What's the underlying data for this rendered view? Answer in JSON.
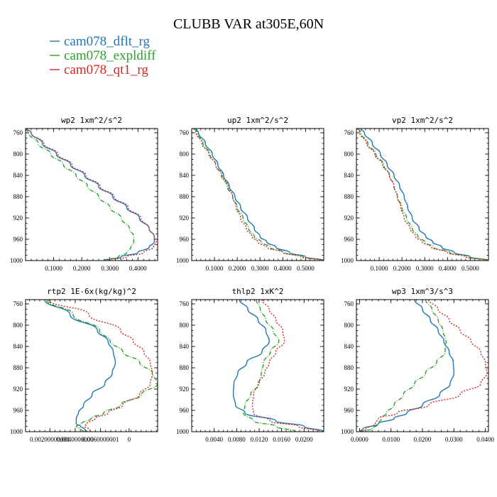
{
  "title": "CLUBB VAR at305E,60N",
  "legend": [
    {
      "name": "cam078_dflt_rg",
      "color": "#1f77b4"
    },
    {
      "name": "cam078_expldiff",
      "color": "#2ca02c"
    },
    {
      "name": "cam078_qt1_rg",
      "color": "#d62728"
    }
  ],
  "chart_data": [
    {
      "type": "line",
      "title": "wp2  1xm^2/s^2",
      "xlim": [
        0,
        0.47
      ],
      "ylim": [
        1000,
        752
      ],
      "x_tick_labels": [
        "0.1000",
        "0.2000",
        "0.3000",
        "0.4000"
      ],
      "x_ticks": [
        0.1,
        0.2,
        0.3,
        0.4
      ],
      "y_ticks": [
        760,
        800,
        840,
        880,
        920,
        960,
        1000
      ],
      "y_tick_labels": [
        "760",
        "800",
        "840",
        "880",
        "920",
        "960",
        "1000"
      ],
      "levels": [
        752,
        760,
        780,
        800,
        820,
        840,
        860,
        880,
        900,
        920,
        940,
        955,
        965,
        975,
        985,
        993,
        1000
      ],
      "series": [
        {
          "name": "cam078_dflt_rg",
          "values": [
            0.005,
            0.02,
            0.06,
            0.11,
            0.16,
            0.21,
            0.26,
            0.31,
            0.36,
            0.405,
            0.44,
            0.458,
            0.458,
            0.44,
            0.4,
            0.34,
            0.28
          ],
          "style": "solid"
        },
        {
          "name": "cam078_expldiff",
          "values": [
            0.0,
            0.01,
            0.045,
            0.09,
            0.135,
            0.18,
            0.22,
            0.26,
            0.3,
            0.34,
            0.37,
            0.385,
            0.385,
            0.375,
            0.36,
            0.33,
            0.28
          ],
          "style": "dashdot"
        },
        {
          "name": "cam078_qt1_rg",
          "values": [
            0.005,
            0.02,
            0.065,
            0.115,
            0.165,
            0.215,
            0.265,
            0.315,
            0.365,
            0.41,
            0.44,
            0.458,
            0.465,
            0.455,
            0.42,
            0.36,
            0.29
          ],
          "style": "dotted"
        }
      ]
    },
    {
      "type": "line",
      "title": "up2  1xm^2/s^2",
      "xlim": [
        0,
        0.58
      ],
      "ylim": [
        1000,
        752
      ],
      "x_tick_labels": [
        "0.1000",
        "0.2000",
        "0.3000",
        "0.4000",
        "0.5000"
      ],
      "x_ticks": [
        0.1,
        0.2,
        0.3,
        0.4,
        0.5
      ],
      "y_ticks": [
        760,
        800,
        840,
        880,
        920,
        960,
        1000
      ],
      "y_tick_labels": [
        "760",
        "800",
        "840",
        "880",
        "920",
        "960",
        "1000"
      ],
      "levels": [
        752,
        760,
        780,
        800,
        820,
        840,
        860,
        880,
        900,
        920,
        940,
        955,
        965,
        975,
        985,
        993,
        1000
      ],
      "series": [
        {
          "name": "cam078_dflt_rg",
          "values": [
            0.02,
            0.03,
            0.06,
            0.09,
            0.115,
            0.14,
            0.165,
            0.19,
            0.215,
            0.245,
            0.275,
            0.3,
            0.33,
            0.37,
            0.43,
            0.5,
            0.58
          ],
          "style": "solid"
        },
        {
          "name": "cam078_expldiff",
          "values": [
            0.015,
            0.025,
            0.05,
            0.08,
            0.105,
            0.13,
            0.155,
            0.18,
            0.2,
            0.225,
            0.25,
            0.275,
            0.305,
            0.345,
            0.41,
            0.49,
            0.58
          ],
          "style": "dashdot"
        },
        {
          "name": "cam078_qt1_rg",
          "values": [
            0.01,
            0.02,
            0.045,
            0.075,
            0.105,
            0.135,
            0.16,
            0.18,
            0.195,
            0.215,
            0.24,
            0.265,
            0.29,
            0.33,
            0.4,
            0.48,
            0.58
          ],
          "style": "dotted"
        }
      ]
    },
    {
      "type": "line",
      "title": "vp2  1xm^2/s^2",
      "xlim": [
        0,
        0.58
      ],
      "ylim": [
        1000,
        752
      ],
      "x_tick_labels": [
        "0.1000",
        "0.2000",
        "0.3000",
        "0.4000",
        "0.5000"
      ],
      "x_ticks": [
        0.1,
        0.2,
        0.3,
        0.4,
        0.5
      ],
      "y_ticks": [
        760,
        800,
        840,
        880,
        920,
        960,
        1000
      ],
      "y_tick_labels": [
        "760",
        "800",
        "840",
        "880",
        "920",
        "960",
        "1000"
      ],
      "levels": [
        752,
        760,
        780,
        800,
        820,
        840,
        860,
        880,
        900,
        920,
        940,
        955,
        965,
        975,
        985,
        993,
        1000
      ],
      "series": [
        {
          "name": "cam078_dflt_rg",
          "values": [
            0.02,
            0.035,
            0.07,
            0.105,
            0.135,
            0.165,
            0.19,
            0.21,
            0.225,
            0.245,
            0.275,
            0.305,
            0.335,
            0.375,
            0.43,
            0.5,
            0.58
          ],
          "style": "solid"
        },
        {
          "name": "cam078_expldiff",
          "values": [
            0.01,
            0.02,
            0.05,
            0.085,
            0.12,
            0.145,
            0.165,
            0.18,
            0.2,
            0.22,
            0.245,
            0.27,
            0.3,
            0.34,
            0.41,
            0.49,
            0.58
          ],
          "style": "dashdot"
        },
        {
          "name": "cam078_qt1_rg",
          "values": [
            0.005,
            0.015,
            0.045,
            0.08,
            0.115,
            0.145,
            0.165,
            0.18,
            0.195,
            0.21,
            0.235,
            0.26,
            0.29,
            0.33,
            0.4,
            0.48,
            0.58
          ],
          "style": "dotted"
        }
      ]
    },
    {
      "type": "line",
      "title": "rtp2  1E-6x(kg/kg)^2",
      "xlim": [
        0,
        0.0125
      ],
      "ylim": [
        1000,
        752
      ],
      "x_tick_labels": [
        "0.00200000001",
        "0.0040000000",
        "0.0060000001",
        "0"
      ],
      "x_ticks": [
        0.0023,
        0.0047,
        0.0071,
        0.0098
      ],
      "y_ticks": [
        760,
        800,
        840,
        880,
        920,
        960,
        1000
      ],
      "y_tick_labels": [
        "760",
        "800",
        "840",
        "880",
        "920",
        "960",
        "1000"
      ],
      "levels": [
        752,
        780,
        810,
        830,
        850,
        870,
        890,
        910,
        930,
        950,
        965,
        975,
        985,
        990,
        995,
        1000
      ],
      "series": [
        {
          "name": "cam078_dflt_rg",
          "values": [
            0.0018,
            0.0042,
            0.0068,
            0.0078,
            0.0083,
            0.0085,
            0.0082,
            0.0075,
            0.0063,
            0.0055,
            0.005,
            0.0048,
            0.0048,
            0.0052,
            0.0056,
            0.0058
          ],
          "style": "solid"
        },
        {
          "name": "cam078_expldiff",
          "values": [
            0.002,
            0.0045,
            0.007,
            0.008,
            0.0092,
            0.0108,
            0.012,
            0.0125,
            0.011,
            0.009,
            0.0074,
            0.0062,
            0.0053,
            0.0048,
            0.0052,
            0.0055
          ],
          "style": "dashdot"
        },
        {
          "name": "cam078_qt1_rg",
          "values": [
            0.0022,
            0.006,
            0.009,
            0.0102,
            0.0112,
            0.0118,
            0.012,
            0.0118,
            0.0108,
            0.0092,
            0.0078,
            0.0066,
            0.0058,
            0.0056,
            0.006,
            0.0062
          ],
          "style": "dotted"
        }
      ]
    },
    {
      "type": "line",
      "title": "thlp2  1xK^2",
      "xlim": [
        0,
        0.0235
      ],
      "ylim": [
        1000,
        752
      ],
      "x_tick_labels": [
        "0.0040",
        "0.0080",
        "0.0120",
        "0.0160",
        "0.0200"
      ],
      "x_ticks": [
        0.004,
        0.008,
        0.012,
        0.016,
        0.02
      ],
      "y_ticks": [
        760,
        800,
        840,
        880,
        920,
        960,
        1000
      ],
      "y_tick_labels": [
        "760",
        "800",
        "840",
        "880",
        "920",
        "960",
        "1000"
      ],
      "levels": [
        752,
        770,
        790,
        810,
        830,
        850,
        870,
        890,
        910,
        930,
        950,
        965,
        980,
        990,
        1000
      ],
      "series": [
        {
          "name": "cam078_dflt_rg",
          "values": [
            0.0085,
            0.01,
            0.0118,
            0.0132,
            0.0138,
            0.0125,
            0.0098,
            0.0082,
            0.0075,
            0.0074,
            0.0078,
            0.0095,
            0.015,
            0.02,
            0.0235
          ],
          "style": "solid"
        },
        {
          "name": "cam078_expldiff",
          "values": [
            0.0115,
            0.0122,
            0.0132,
            0.0145,
            0.0155,
            0.014,
            0.0128,
            0.0124,
            0.012,
            0.0105,
            0.0095,
            0.0092,
            0.011,
            0.015,
            0.0185
          ],
          "style": "dashdot"
        },
        {
          "name": "cam078_qt1_rg",
          "values": [
            0.0125,
            0.0138,
            0.015,
            0.0162,
            0.0165,
            0.015,
            0.0138,
            0.013,
            0.0118,
            0.011,
            0.0108,
            0.011,
            0.014,
            0.019,
            0.023
          ],
          "style": "dotted"
        }
      ]
    },
    {
      "type": "line",
      "title": "wp3  1xm^3/s^3",
      "xlim": [
        -0.001,
        0.041
      ],
      "ylim": [
        1000,
        752
      ],
      "x_tick_labels": [
        "0.0000",
        "0.0100",
        "0.0200",
        "0.0300",
        "0.0400"
      ],
      "x_ticks": [
        0.0,
        0.01,
        0.02,
        0.03,
        0.04
      ],
      "y_ticks": [
        760,
        800,
        840,
        880,
        920,
        960,
        1000
      ],
      "y_tick_labels": [
        "760",
        "800",
        "840",
        "880",
        "920",
        "960",
        "1000"
      ],
      "levels": [
        752,
        770,
        790,
        810,
        830,
        850,
        870,
        890,
        910,
        930,
        950,
        965,
        975,
        985,
        995,
        1000
      ],
      "series": [
        {
          "name": "cam078_dflt_rg",
          "values": [
            0.0175,
            0.02,
            0.0225,
            0.025,
            0.0268,
            0.0285,
            0.0298,
            0.03,
            0.0288,
            0.0255,
            0.02,
            0.015,
            0.011,
            0.006,
            0.001,
            0.0
          ],
          "style": "solid"
        },
        {
          "name": "cam078_expldiff",
          "values": [
            0.021,
            0.023,
            0.025,
            0.0265,
            0.0275,
            0.0272,
            0.0245,
            0.021,
            0.0175,
            0.014,
            0.011,
            0.0085,
            0.007,
            0.006,
            0.004,
            0.0005
          ],
          "style": "dashdot"
        },
        {
          "name": "cam078_qt1_rg",
          "values": [
            0.022,
            0.025,
            0.0285,
            0.032,
            0.0355,
            0.0385,
            0.04,
            0.0405,
            0.0385,
            0.032,
            0.022,
            0.012,
            0.006,
            0.005,
            0.002,
            0.0
          ],
          "style": "dotted"
        }
      ]
    }
  ]
}
